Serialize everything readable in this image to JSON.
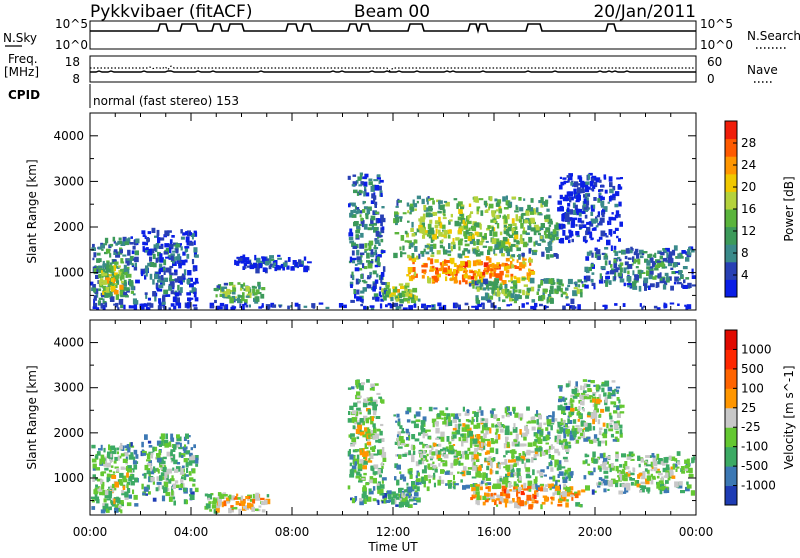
{
  "header": {
    "station": "Pykkvibaer (fitACF)",
    "beam": "Beam 00",
    "date": "20/Jan/2011"
  },
  "strip": {
    "nsky_label": "N.Sky",
    "nsky_top": "10^5",
    "nsky_bottom": "10^0",
    "nsearch_label": "N.Search",
    "nsearch_top": "10^5",
    "nsearch_bottom": "10^0",
    "freq_label": "Freq.",
    "freq_unit": "[MHz]",
    "freq_top": "18",
    "freq_bottom": "8",
    "nave_label": "Nave",
    "nave_top": "60",
    "nave_bottom": "0",
    "cpid_label": "CPID",
    "cpid_text": "normal (fast stereo) 153"
  },
  "chart_data": [
    {
      "type": "heatmap",
      "title": "",
      "xlabel": "Time UT",
      "ylabel": "Slant Range [km]",
      "x_ticks": [
        "00:00",
        "04:00",
        "08:00",
        "12:00",
        "16:00",
        "20:00",
        "00:00"
      ],
      "y_ticks": [
        "1000",
        "2000",
        "3000",
        "4000"
      ],
      "ylim": [
        180,
        4500
      ],
      "colorbar": {
        "label": "Power [dB]",
        "ticks": [
          "4",
          "8",
          "12",
          "16",
          "20",
          "24",
          "28"
        ],
        "colors": [
          "#0a1ee6",
          "#2840b4",
          "#3a8a8a",
          "#3c9a5a",
          "#5ab43c",
          "#b4d23c",
          "#f0c800",
          "#ff9600",
          "#ff5a00",
          "#f01e0a"
        ]
      },
      "regions": [
        {
          "t0": 0.0,
          "t1": 1.8,
          "r0": 200,
          "r1": 1800,
          "level": 0.35
        },
        {
          "t0": 0.3,
          "t1": 1.4,
          "r0": 500,
          "r1": 1200,
          "level": 0.6
        },
        {
          "t0": 2.0,
          "t1": 4.2,
          "r0": 300,
          "r1": 2000,
          "level": 0.2
        },
        {
          "t0": 4.8,
          "t1": 6.8,
          "r0": 400,
          "r1": 800,
          "level": 0.45
        },
        {
          "t0": 5.5,
          "t1": 8.6,
          "r0": 1100,
          "r1": 1400,
          "level": 0.15
        },
        {
          "t0": 10.2,
          "t1": 11.6,
          "r0": 400,
          "r1": 3200,
          "level": 0.3
        },
        {
          "t0": 11.5,
          "t1": 13.0,
          "r0": 400,
          "r1": 800,
          "level": 0.55
        },
        {
          "t0": 12.5,
          "t1": 17.5,
          "r0": 800,
          "r1": 1400,
          "level": 0.8
        },
        {
          "t0": 12.0,
          "t1": 18.5,
          "r0": 1400,
          "r1": 2700,
          "level": 0.5
        },
        {
          "t0": 15.0,
          "t1": 19.5,
          "r0": 400,
          "r1": 900,
          "level": 0.45
        },
        {
          "t0": 19.5,
          "t1": 24.0,
          "r0": 700,
          "r1": 1600,
          "level": 0.3
        },
        {
          "t0": 18.5,
          "t1": 21.0,
          "r0": 1700,
          "r1": 3200,
          "level": 0.15
        },
        {
          "t0": 0.0,
          "t1": 24.0,
          "r0": 200,
          "r1": 350,
          "level": 0.1
        }
      ]
    },
    {
      "type": "heatmap",
      "title": "",
      "xlabel": "Time UT",
      "ylabel": "Slant Range [km]",
      "x_ticks": [
        "00:00",
        "04:00",
        "08:00",
        "12:00",
        "16:00",
        "20:00",
        "00:00"
      ],
      "y_ticks": [
        "1000",
        "2000",
        "3000",
        "4000"
      ],
      "ylim": [
        180,
        4500
      ],
      "colorbar": {
        "label": "Velocity [m s^-1]",
        "ticks": [
          "1000",
          "500",
          "100",
          "25",
          "-25",
          "-100",
          "-500",
          "-1000"
        ],
        "colors": [
          "#1e3cb4",
          "#3c78b4",
          "#3caa64",
          "#64c832",
          "#c8c8c8",
          "#ff9600",
          "#ff6400",
          "#ff2800",
          "#e00a00"
        ]
      },
      "regions": [
        {
          "t0": 0.0,
          "t1": 1.8,
          "r0": 300,
          "r1": 1800,
          "level": 0.45
        },
        {
          "t0": 2.0,
          "t1": 4.2,
          "r0": 500,
          "r1": 2000,
          "level": 0.4
        },
        {
          "t0": 4.5,
          "t1": 7.0,
          "r0": 300,
          "r1": 700,
          "level": 0.6
        },
        {
          "t0": 10.2,
          "t1": 11.6,
          "r0": 500,
          "r1": 3200,
          "level": 0.45
        },
        {
          "t0": 11.5,
          "t1": 13.0,
          "r0": 400,
          "r1": 800,
          "level": 0.35
        },
        {
          "t0": 12.0,
          "t1": 19.0,
          "r0": 800,
          "r1": 2600,
          "level": 0.45
        },
        {
          "t0": 15.0,
          "t1": 19.5,
          "r0": 400,
          "r1": 900,
          "level": 0.65
        },
        {
          "t0": 18.5,
          "t1": 21.0,
          "r0": 1800,
          "r1": 3200,
          "level": 0.45
        },
        {
          "t0": 19.5,
          "t1": 24.0,
          "r0": 700,
          "r1": 1600,
          "level": 0.45
        }
      ]
    }
  ]
}
